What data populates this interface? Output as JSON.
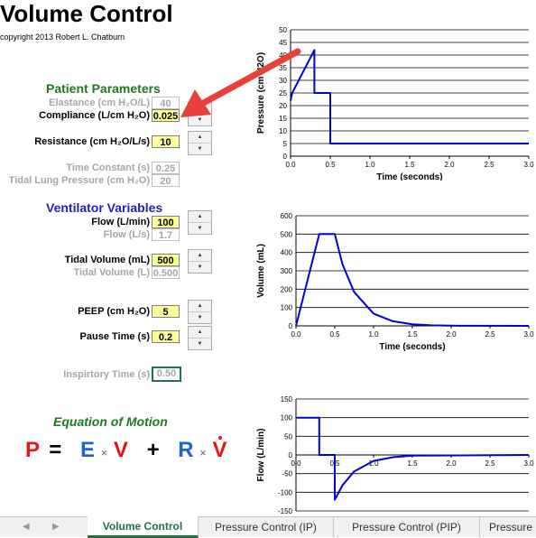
{
  "title": "Volume Control",
  "copyright": "copyright 2013 Robert L. Chatburn",
  "patient": {
    "heading": "Patient Parameters",
    "elastance_label": "Elastance (cm H₂O/L)",
    "elastance_value": "40",
    "compliance_label": "Compliance (L/cm H₂O)",
    "compliance_value": "0.025",
    "resistance_label": "Resistance (cm H₂O/L/s)",
    "resistance_value": "10",
    "time_constant_label": "Time Constant (s)",
    "time_constant_value": "0.25",
    "tidal_lung_pressure_label": "Tidal Lung Pressure (cm H₂O)",
    "tidal_lung_pressure_value": "20"
  },
  "ventilator": {
    "heading": "Ventilator Variables",
    "flow_label": "Flow (L/min)",
    "flow_value": "100",
    "flow_ls_label": "Flow (L/s)",
    "flow_ls_value": "1.7",
    "tidal_volume_label": "Tidal Volume (mL)",
    "tidal_volume_value": "500",
    "tidal_volume_l_label": "Tidal Volume (L)",
    "tidal_volume_l_value": "0.500",
    "peep_label": "PEEP (cm H₂O)",
    "peep_value": "5",
    "pause_time_label": "Pause Time (s)",
    "pause_time_value": "0.2",
    "inspiratory_time_label": "Inspirtory Time (s)",
    "inspiratory_time_value": "0.50"
  },
  "equation": {
    "heading": "Equation of Motion",
    "P": "P",
    "eq": "=",
    "E": "E",
    "times1": "×",
    "V": "V",
    "plus": "+",
    "R": "R",
    "times2": "×",
    "Vdot": "V"
  },
  "icons": {
    "spin_up": "spin-up-triangle",
    "spin_down": "spin-down-triangle",
    "nav_prev": "◀",
    "nav_next": "▶",
    "callout_arrow": "red-arrow"
  },
  "colors": {
    "trace": "#0000dd",
    "arrow": "#e8413a",
    "input_fill": "#ffff99",
    "heading_green": "#1f7a1f",
    "heading_blue": "#1f1fbf",
    "active_tab": "#217346"
  },
  "tabs": [
    {
      "label": "Volume Control",
      "active": true
    },
    {
      "label": "Pressure Control (IP)",
      "active": false
    },
    {
      "label": "Pressure Control (PIP)",
      "active": false
    },
    {
      "label": "Pressure",
      "active": false
    }
  ],
  "chart_data": [
    {
      "type": "line",
      "ylabel": "Pressure (cm H2O)",
      "xlabel": "Time (seconds)",
      "xlim": [
        0,
        3
      ],
      "ylim": [
        0,
        50
      ],
      "xticks": [
        "0.0",
        "0.5",
        "1.0",
        "1.5",
        "2.0",
        "2.5",
        "3.0"
      ],
      "yticks": [
        "0",
        "5",
        "10",
        "15",
        "20",
        "25",
        "30",
        "35",
        "40",
        "45",
        "50"
      ],
      "grid": "horizontal",
      "series": [
        {
          "x": [
            0,
            0.02,
            0.3,
            0.3,
            0.5,
            0.5,
            3.0
          ],
          "y": [
            22,
            25,
            42,
            25,
            25,
            5,
            5
          ]
        }
      ]
    },
    {
      "type": "line",
      "ylabel": "Volume (mL)",
      "xlabel": "Time (seconds)",
      "xlim": [
        0,
        3
      ],
      "ylim": [
        0,
        600
      ],
      "xticks": [
        "0.0",
        "0.5",
        "1.0",
        "1.5",
        "2.0",
        "2.5",
        "3.0"
      ],
      "yticks": [
        "0",
        "100",
        "200",
        "300",
        "400",
        "500",
        "600"
      ],
      "grid": "horizontal",
      "series": [
        {
          "x": [
            0,
            0.3,
            0.5,
            0.6,
            0.75,
            1.0,
            1.25,
            1.5,
            1.75,
            2.0,
            3.0
          ],
          "y": [
            0,
            500,
            500,
            335,
            184,
            67,
            25,
            9,
            3,
            1,
            0
          ]
        }
      ]
    },
    {
      "type": "line",
      "ylabel": "Flow (L/min)",
      "xlabel": "",
      "xlim": [
        0,
        3
      ],
      "ylim": [
        -150,
        150
      ],
      "xticks": [
        "0.0",
        "0.5",
        "1.0",
        "1.5",
        "2.0",
        "2.5",
        "3.0"
      ],
      "yticks": [
        "-150",
        "-100",
        "-50",
        "0",
        "50",
        "100",
        "150"
      ],
      "grid": "horizontal",
      "series": [
        {
          "x": [
            0,
            0.3,
            0.3,
            0.5,
            0.5,
            0.6,
            0.75,
            1.0,
            1.25,
            1.5,
            3.0
          ],
          "y": [
            100,
            100,
            0,
            0,
            -120,
            -81,
            -44,
            -16,
            -6,
            -2,
            0
          ]
        }
      ]
    }
  ]
}
